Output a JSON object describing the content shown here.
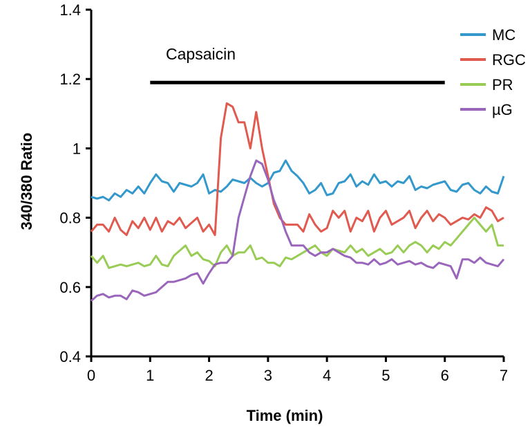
{
  "chart_data": {
    "type": "line",
    "title": "",
    "xlabel": "Time (min)",
    "ylabel": "340/380 Ratio",
    "xlim": [
      0,
      7
    ],
    "ylim": [
      0.4,
      1.4
    ],
    "xticks": [
      0,
      1,
      2,
      3,
      4,
      5,
      6,
      7
    ],
    "yticks": [
      0.4,
      0.6,
      0.8,
      1,
      1.2,
      1.4
    ],
    "xtick_labels": [
      "0",
      "1",
      "2",
      "3",
      "4",
      "5",
      "6",
      "7"
    ],
    "ytick_labels": [
      "0.4",
      "0.6",
      "0.8",
      "1",
      "1.2",
      "1.4"
    ],
    "grid": false,
    "legend_position": "top-right",
    "annotation": {
      "label": "Capsaicin",
      "x_start": 1,
      "x_end": 6,
      "y": 1.19
    },
    "x": [
      0,
      0.1,
      0.2,
      0.3,
      0.4,
      0.5,
      0.6,
      0.7,
      0.8,
      0.9,
      1,
      1.1,
      1.2,
      1.3,
      1.4,
      1.5,
      1.6,
      1.7,
      1.8,
      1.9,
      2,
      2.1,
      2.2,
      2.3,
      2.4,
      2.5,
      2.6,
      2.7,
      2.8,
      2.9,
      3,
      3.1,
      3.2,
      3.3,
      3.4,
      3.5,
      3.6,
      3.7,
      3.8,
      3.9,
      4,
      4.1,
      4.2,
      4.3,
      4.4,
      4.5,
      4.6,
      4.7,
      4.8,
      4.9,
      5,
      5.1,
      5.2,
      5.3,
      5.4,
      5.5,
      5.6,
      5.7,
      5.8,
      5.9,
      6,
      6.1,
      6.2,
      6.3,
      6.4,
      6.5,
      6.6,
      6.7,
      6.8,
      6.9,
      7
    ],
    "series": [
      {
        "name": "MC",
        "color": "#3399CC",
        "values": [
          0.86,
          0.855,
          0.86,
          0.85,
          0.87,
          0.86,
          0.88,
          0.87,
          0.89,
          0.87,
          0.9,
          0.925,
          0.905,
          0.9,
          0.875,
          0.9,
          0.895,
          0.89,
          0.9,
          0.925,
          0.87,
          0.88,
          0.875,
          0.89,
          0.91,
          0.905,
          0.9,
          0.915,
          0.9,
          0.89,
          0.9,
          0.93,
          0.935,
          0.965,
          0.935,
          0.92,
          0.9,
          0.87,
          0.88,
          0.9,
          0.865,
          0.87,
          0.9,
          0.905,
          0.925,
          0.89,
          0.905,
          0.895,
          0.925,
          0.9,
          0.905,
          0.89,
          0.905,
          0.9,
          0.92,
          0.88,
          0.89,
          0.885,
          0.895,
          0.9,
          0.905,
          0.88,
          0.875,
          0.895,
          0.9,
          0.88,
          0.87,
          0.89,
          0.875,
          0.87,
          0.92
        ]
      },
      {
        "name": "RGC",
        "color": "#E05A50",
        "values": [
          0.76,
          0.78,
          0.78,
          0.76,
          0.8,
          0.765,
          0.75,
          0.79,
          0.77,
          0.8,
          0.765,
          0.8,
          0.76,
          0.79,
          0.78,
          0.8,
          0.77,
          0.785,
          0.8,
          0.76,
          0.78,
          0.75,
          1.03,
          1.13,
          1.12,
          1.075,
          1.075,
          1.0,
          1.105,
          1.0,
          0.92,
          0.84,
          0.8,
          0.78,
          0.78,
          0.78,
          0.76,
          0.81,
          0.78,
          0.76,
          0.77,
          0.82,
          0.8,
          0.82,
          0.76,
          0.8,
          0.79,
          0.82,
          0.76,
          0.8,
          0.82,
          0.78,
          0.79,
          0.8,
          0.82,
          0.77,
          0.8,
          0.82,
          0.79,
          0.81,
          0.8,
          0.78,
          0.79,
          0.8,
          0.795,
          0.81,
          0.8,
          0.83,
          0.82,
          0.79,
          0.8
        ]
      },
      {
        "name": "PR",
        "color": "#99CC55",
        "values": [
          0.69,
          0.67,
          0.69,
          0.655,
          0.66,
          0.665,
          0.66,
          0.665,
          0.67,
          0.66,
          0.665,
          0.69,
          0.665,
          0.66,
          0.69,
          0.705,
          0.72,
          0.69,
          0.7,
          0.68,
          0.675,
          0.66,
          0.7,
          0.72,
          0.69,
          0.7,
          0.7,
          0.72,
          0.68,
          0.685,
          0.67,
          0.67,
          0.66,
          0.685,
          0.68,
          0.69,
          0.7,
          0.71,
          0.72,
          0.7,
          0.69,
          0.71,
          0.705,
          0.7,
          0.72,
          0.7,
          0.71,
          0.69,
          0.7,
          0.71,
          0.695,
          0.7,
          0.72,
          0.7,
          0.72,
          0.73,
          0.72,
          0.7,
          0.72,
          0.71,
          0.73,
          0.72,
          0.74,
          0.76,
          0.78,
          0.8,
          0.78,
          0.76,
          0.78,
          0.72,
          0.72
        ]
      },
      {
        "name": "µG",
        "color": "#9966BB",
        "values": [
          0.56,
          0.575,
          0.58,
          0.57,
          0.575,
          0.575,
          0.565,
          0.59,
          0.585,
          0.575,
          0.58,
          0.585,
          0.6,
          0.615,
          0.615,
          0.62,
          0.625,
          0.635,
          0.64,
          0.61,
          0.64,
          0.665,
          0.67,
          0.67,
          0.69,
          0.8,
          0.86,
          0.92,
          0.965,
          0.955,
          0.91,
          0.85,
          0.81,
          0.76,
          0.72,
          0.72,
          0.72,
          0.7,
          0.69,
          0.7,
          0.7,
          0.71,
          0.7,
          0.69,
          0.685,
          0.67,
          0.67,
          0.665,
          0.68,
          0.665,
          0.67,
          0.68,
          0.665,
          0.67,
          0.675,
          0.665,
          0.67,
          0.66,
          0.655,
          0.67,
          0.665,
          0.66,
          0.625,
          0.68,
          0.68,
          0.67,
          0.685,
          0.67,
          0.665,
          0.66,
          0.68
        ]
      }
    ]
  }
}
